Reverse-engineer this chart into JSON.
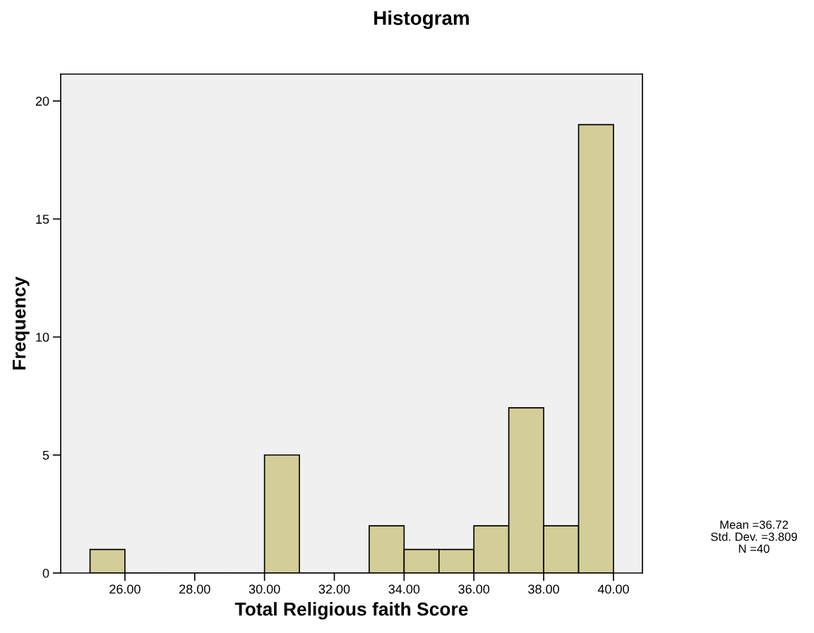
{
  "chart_data": {
    "type": "histogram",
    "title": "Histogram",
    "xlabel": "Total Religious faith Score",
    "ylabel": "Frequency",
    "bins": [
      25,
      26,
      27,
      28,
      29,
      30,
      31,
      32,
      33,
      34,
      35,
      36,
      37,
      38,
      39,
      40
    ],
    "values": [
      1,
      0,
      0,
      0,
      0,
      5,
      0,
      0,
      2,
      1,
      1,
      2,
      7,
      2,
      19
    ],
    "color": "#d3ce97",
    "xlim": [
      24.16,
      40.83
    ],
    "ylim": [
      0,
      21.14
    ],
    "xticks": [
      {
        "value": 26,
        "label": "26.00"
      },
      {
        "value": 28,
        "label": "28.00"
      },
      {
        "value": 30,
        "label": "30.00"
      },
      {
        "value": 32,
        "label": "32.00"
      },
      {
        "value": 34,
        "label": "34.00"
      },
      {
        "value": 36,
        "label": "36.00"
      },
      {
        "value": 38,
        "label": "38.00"
      },
      {
        "value": 40,
        "label": "40.00"
      }
    ],
    "yticks": [
      0,
      5,
      10,
      15,
      20
    ],
    "annotations": [
      "Mean =36.72",
      "Std. Dev. =3.809",
      "N =40"
    ],
    "grid": false,
    "legend": false
  }
}
